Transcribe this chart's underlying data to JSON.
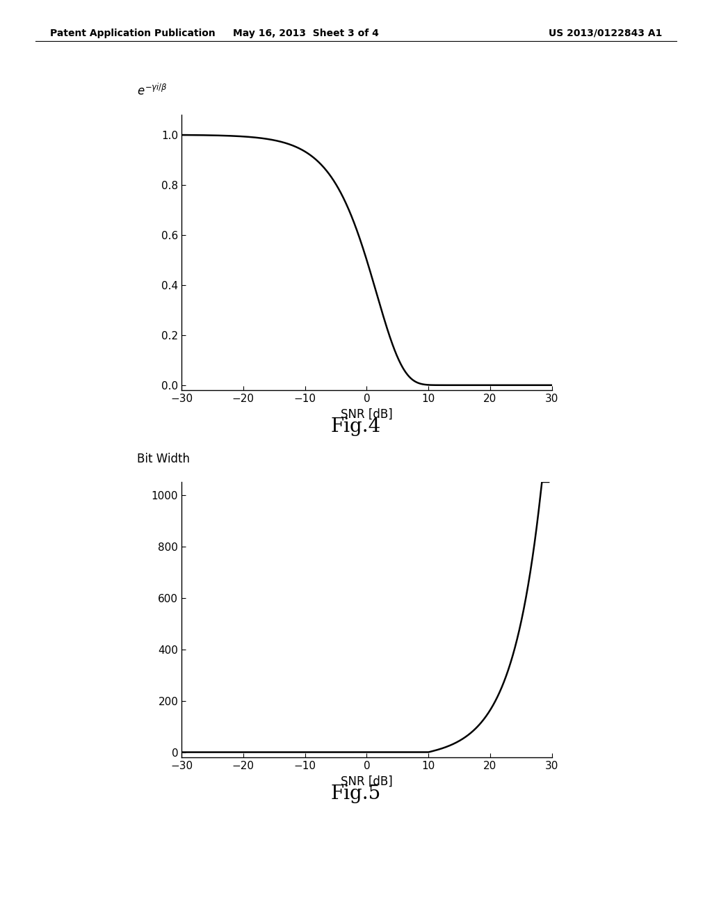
{
  "background_color": "#ffffff",
  "header_left": "Patent Application Publication",
  "header_mid": "May 16, 2013  Sheet 3 of 4",
  "header_right": "US 2013/0122843 A1",
  "fig4_label": "Fig.4",
  "fig5_label": "Fig.5",
  "fig4_xlabel": "SNR [dB]",
  "fig4_xlim": [
    -30,
    30
  ],
  "fig4_ylim": [
    -0.02,
    1.08
  ],
  "fig4_yticks": [
    0.0,
    0.2,
    0.4,
    0.6,
    0.8,
    1.0
  ],
  "fig4_yticklabels": [
    "0.0",
    "0.2",
    "0.4",
    "0.6",
    "0.8",
    "1.0"
  ],
  "fig4_xticks": [
    -30,
    -20,
    -10,
    0,
    10,
    20,
    30
  ],
  "fig5_ylabel": "Bit Width",
  "fig5_xlabel": "SNR [dB]",
  "fig5_xlim": [
    -30,
    30
  ],
  "fig5_ylim": [
    -20,
    1050
  ],
  "fig5_yticks": [
    0,
    200,
    400,
    600,
    800,
    1000
  ],
  "fig5_xticks": [
    -30,
    -20,
    -10,
    0,
    10,
    20,
    30
  ],
  "line_color": "#000000",
  "line_width": 1.8,
  "tick_fontsize": 11,
  "label_fontsize": 12,
  "fig_label_fontsize": 20,
  "header_fontsize": 10,
  "fig4_beta": 1.4427,
  "fig5_a": 0.002,
  "fig5_b": 3.0
}
